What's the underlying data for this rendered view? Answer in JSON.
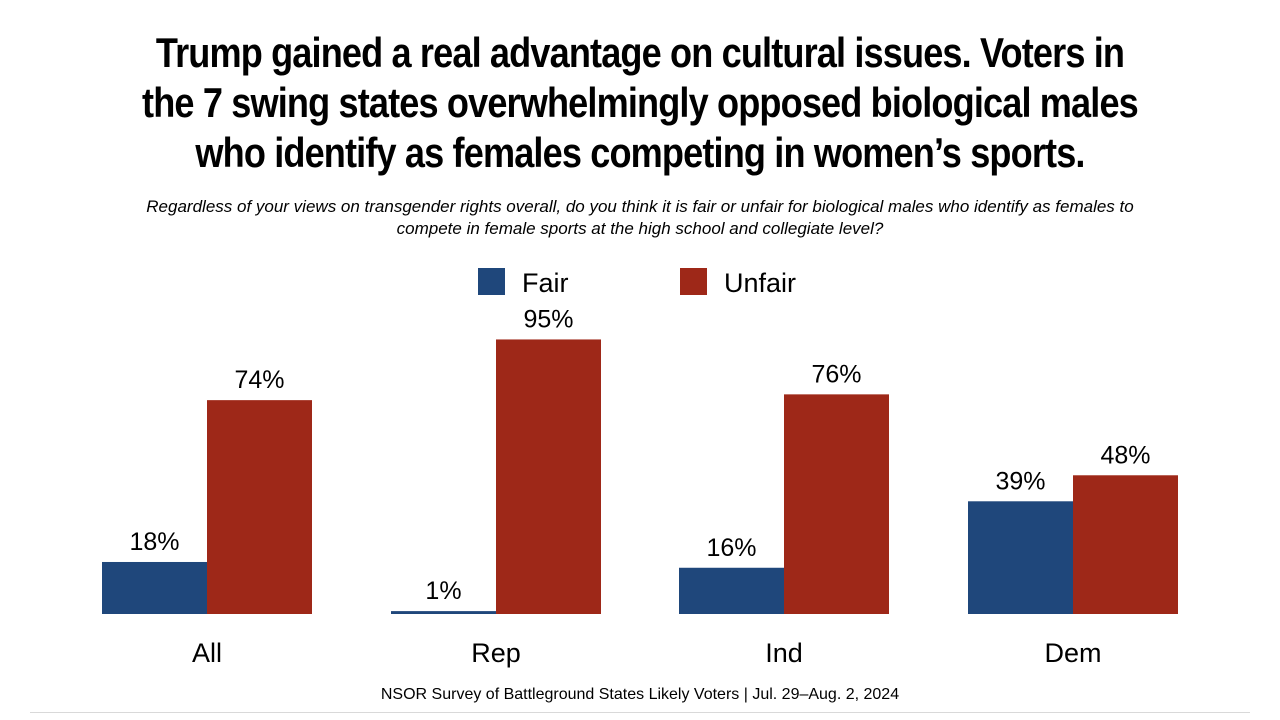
{
  "chart_data": {
    "type": "bar",
    "title": "Trump gained a real advantage on cultural issues. Voters in\nthe 7 swing states overwhelmingly opposed biological males\nwho identify as females competing in women’s sports.",
    "subtitle": "Regardless of your views on transgender rights overall, do you think it is fair or unfair for biological males who identify as females to\ncompete in female sports at the high school and collegiate level?",
    "categories": [
      "All",
      "Rep",
      "Ind",
      "Dem"
    ],
    "series": [
      {
        "name": "Fair",
        "color": "#1f477b",
        "values": [
          18,
          1,
          16,
          39
        ],
        "labels": [
          "18%",
          "1%",
          "16%",
          "39%"
        ]
      },
      {
        "name": "Unfair",
        "color": "#9e2818",
        "values": [
          74,
          95,
          76,
          48
        ],
        "labels": [
          "74%",
          "95%",
          "76%",
          "48%"
        ]
      }
    ],
    "ylim": [
      0,
      100
    ],
    "grid": false,
    "legend": "top-center",
    "xlabel": "",
    "ylabel": ""
  },
  "footer": {
    "source": "NSOR Survey of Battleground States Likely Voters | Jul. 29–Aug. 2, 2024"
  }
}
